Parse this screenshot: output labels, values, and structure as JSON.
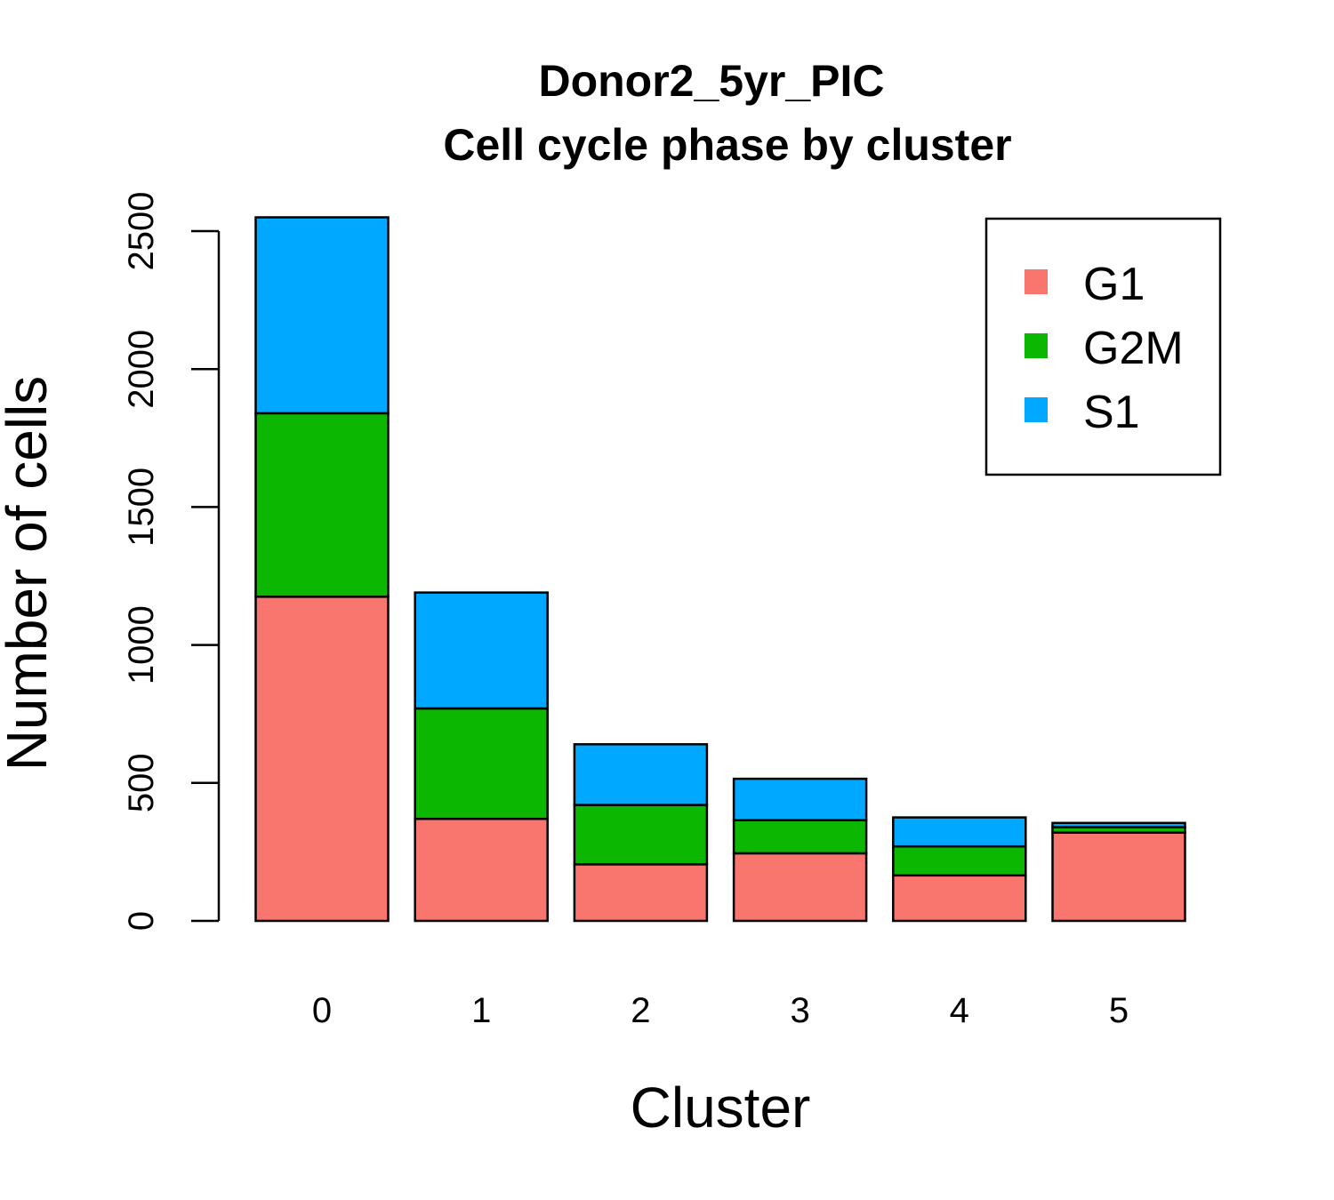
{
  "chart_data": {
    "type": "bar",
    "stacked": true,
    "title": "Donor2_5yr_PIC",
    "subtitle": "Cell cycle phase by cluster",
    "xlabel": "Cluster",
    "ylabel": "Number of cells",
    "categories": [
      "0",
      "1",
      "2",
      "3",
      "4",
      "5"
    ],
    "ylim": [
      0,
      2500
    ],
    "yticks": [
      0,
      500,
      1000,
      1500,
      2000,
      2500
    ],
    "grid": false,
    "legend_position": "top-right",
    "series": [
      {
        "name": "G1",
        "color": "#F8766D",
        "values": [
          1175,
          370,
          205,
          245,
          165,
          320
        ]
      },
      {
        "name": "G2M",
        "color": "#0CB702",
        "values": [
          665,
          400,
          215,
          120,
          105,
          20
        ]
      },
      {
        "name": "S1",
        "color": "#00A9FF",
        "values": [
          710,
          420,
          220,
          150,
          105,
          15
        ]
      }
    ]
  }
}
